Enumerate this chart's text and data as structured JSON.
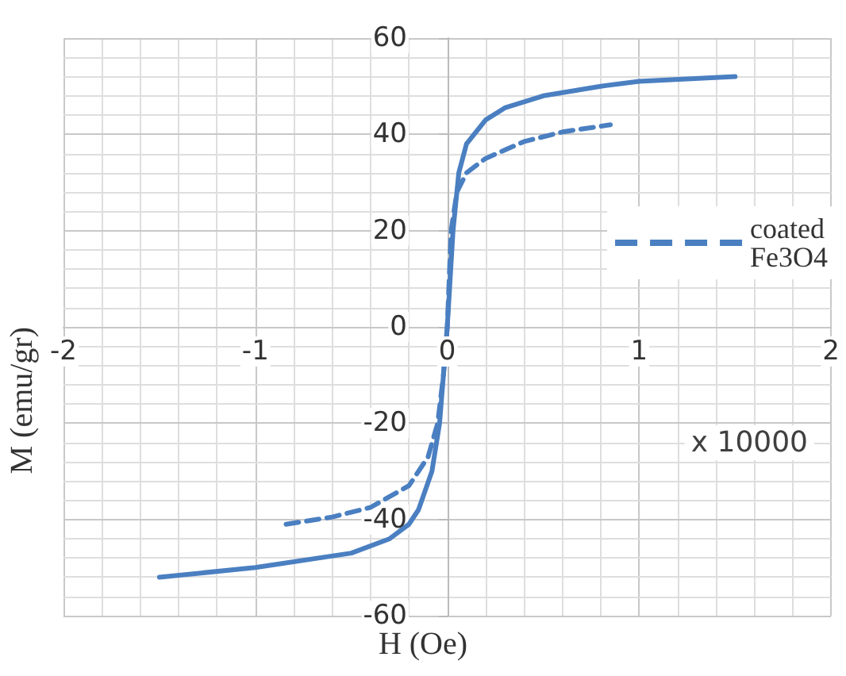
{
  "chart_data": {
    "type": "line",
    "xlabel": "H (Oe)",
    "ylabel": "M (emu/gr)",
    "annotations": [
      "x 10000"
    ],
    "xlim": [
      -2,
      2
    ],
    "xticks": [
      -2,
      -1,
      0,
      1,
      2
    ],
    "ylim": [
      -60,
      60
    ],
    "yticks": [
      -60,
      -40,
      -20,
      0,
      20,
      40,
      60
    ],
    "grid": true,
    "legend": "right",
    "marker": "none",
    "series": [
      {
        "color": "#4a7fc1",
        "line_style": "solid",
        "x": [
          -1.5,
          -1.0,
          -0.5,
          -0.3,
          -0.2,
          -0.15,
          -0.08,
          -0.04,
          -0.02,
          0,
          0.03,
          0.06,
          0.1,
          0.2,
          0.3,
          0.5,
          0.8,
          1.0,
          1.5
        ],
        "values": [
          -52,
          -50,
          -47,
          -44,
          -41,
          -38,
          -30,
          -20,
          -10,
          0,
          20,
          32,
          38,
          43,
          45.5,
          48,
          50,
          51,
          52
        ]
      },
      {
        "name": "coated Fe3O4",
        "color": "#4a7fc1",
        "line_style": "dashed",
        "x": [
          -0.84,
          -0.6,
          -0.4,
          -0.2,
          -0.1,
          -0.05,
          -0.02,
          0,
          0.02,
          0.05,
          0.1,
          0.2,
          0.4,
          0.6,
          0.85
        ],
        "values": [
          -41,
          -39.5,
          -37.5,
          -33,
          -27,
          -20,
          -10,
          0,
          20,
          28,
          32,
          35,
          38.5,
          40.5,
          42
        ]
      }
    ]
  }
}
